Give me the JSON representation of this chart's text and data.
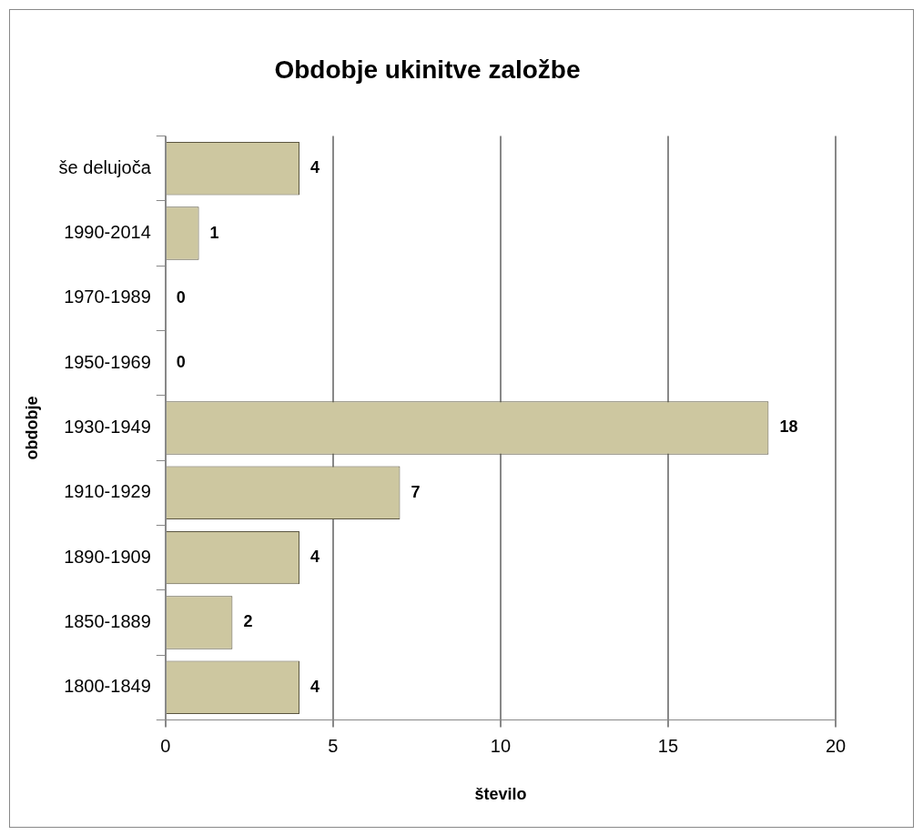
{
  "chart_data": {
    "type": "bar",
    "orientation": "horizontal",
    "title": "Obdobje ukinitve založbe",
    "xlabel": "število",
    "ylabel": "obdobje",
    "categories": [
      "še delujoča",
      "1990-2014",
      "1970-1989",
      "1950-1969",
      "1930-1949",
      "1910-1929",
      "1890-1909",
      "1850-1889",
      "1800-1849"
    ],
    "values": [
      4,
      1,
      0,
      0,
      18,
      7,
      4,
      2,
      4
    ],
    "color": "#cdc7a0",
    "xlim": [
      0,
      20
    ],
    "xticks": [
      0,
      5,
      10,
      15,
      20
    ],
    "grid": "x",
    "data_labels": true,
    "legend": false
  }
}
